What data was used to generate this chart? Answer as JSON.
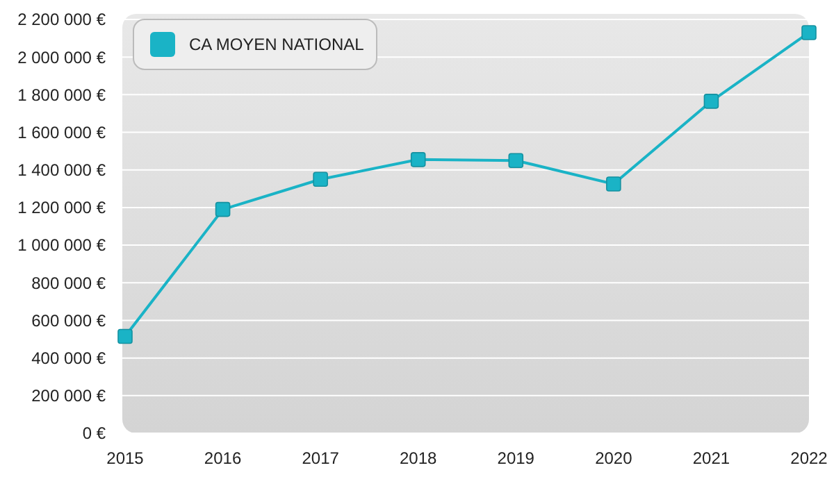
{
  "chart_data": {
    "type": "line",
    "categories": [
      "2015",
      "2016",
      "2017",
      "2018",
      "2019",
      "2020",
      "2021",
      "2022"
    ],
    "series": [
      {
        "name": "CA MOYEN NATIONAL",
        "color": "#1ab3c6",
        "values": [
          515000,
          1190000,
          1350000,
          1455000,
          1450000,
          1325000,
          1765000,
          2130000
        ]
      }
    ],
    "ylim": [
      0,
      2200000
    ],
    "yticks": [
      {
        "value": 0,
        "label": "0 €"
      },
      {
        "value": 200000,
        "label": "200 000 €"
      },
      {
        "value": 400000,
        "label": "400 000 €"
      },
      {
        "value": 600000,
        "label": "600 000 €"
      },
      {
        "value": 800000,
        "label": "800 000 €"
      },
      {
        "value": 1000000,
        "label": "1 000 000 €"
      },
      {
        "value": 1200000,
        "label": "1 200 000 €"
      },
      {
        "value": 1400000,
        "label": "1 400 000 €"
      },
      {
        "value": 1600000,
        "label": "1 600 000 €"
      },
      {
        "value": 1800000,
        "label": "1 800 000 €"
      },
      {
        "value": 2000000,
        "label": "2 000 000 €"
      },
      {
        "value": 2200000,
        "label": "2 200 000 €"
      }
    ],
    "grid": "y",
    "legend": "top left",
    "marker": "square",
    "line_style": "solid"
  }
}
